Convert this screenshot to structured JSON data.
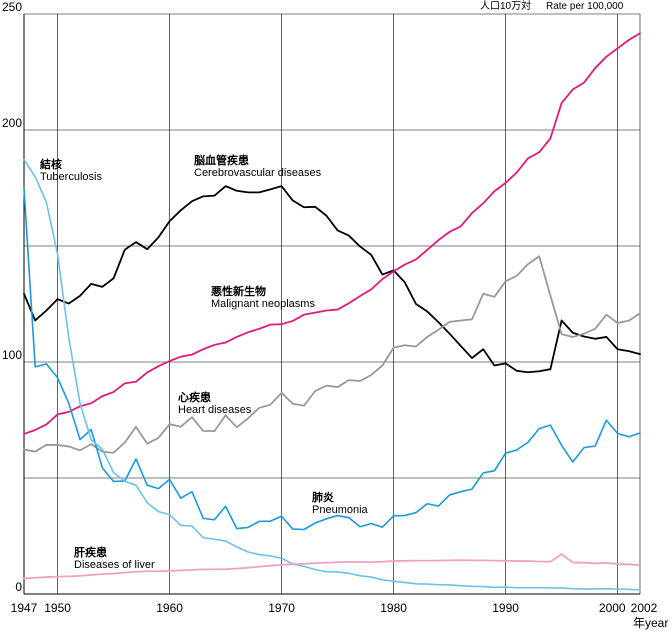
{
  "chart_data": {
    "type": "line",
    "unit_label_ja": "人口10万対",
    "unit_label_en": "Rate per 100,000",
    "x_axis_unit_ja": "年",
    "x_axis_unit_en": "year",
    "xlim": [
      1947,
      2002
    ],
    "ylim": [
      0,
      250
    ],
    "grid": true,
    "x_ticks": [
      1947,
      1950,
      1960,
      1970,
      1980,
      1990,
      2000,
      2002
    ],
    "y_ticks": [
      0,
      100,
      200,
      250
    ],
    "grid_x": [
      1950,
      1960,
      1970,
      1980,
      1990,
      2000,
      2002
    ],
    "grid_y": [
      50,
      100,
      150,
      200,
      250
    ],
    "x": [
      1947,
      1948,
      1949,
      1950,
      1951,
      1952,
      1953,
      1954,
      1955,
      1956,
      1957,
      1958,
      1959,
      1960,
      1961,
      1962,
      1963,
      1964,
      1965,
      1966,
      1967,
      1968,
      1969,
      1970,
      1971,
      1972,
      1973,
      1974,
      1975,
      1976,
      1977,
      1978,
      1979,
      1980,
      1981,
      1982,
      1983,
      1984,
      1985,
      1986,
      1987,
      1988,
      1989,
      1990,
      1991,
      1992,
      1993,
      1994,
      1995,
      1996,
      1997,
      1998,
      1999,
      2000,
      2001,
      2002
    ],
    "series": [
      {
        "name_ja": "脳血管疾患",
        "name_en": "Cerebrovascular diseases",
        "color": "#000000",
        "values": [
          129.4,
          117.9,
          122.2,
          127.1,
          125.2,
          128.5,
          133.7,
          132.4,
          136.1,
          148.4,
          151.7,
          148.6,
          153.7,
          160.7,
          165.4,
          169.3,
          171.4,
          171.7,
          175.8,
          173.8,
          173.1,
          173.1,
          174.4,
          175.8,
          169.6,
          166.7,
          166.9,
          163.1,
          156.7,
          154.5,
          149.8,
          146.2,
          137.7,
          139.5,
          134.3,
          125.0,
          121.8,
          117.2,
          112.2,
          106.9,
          101.7,
          105.5,
          98.5,
          99.4,
          96.2,
          95.6,
          96.0,
          96.9,
          117.9,
          112.6,
          111.0,
          110.0,
          110.8,
          105.5,
          104.7,
          103.4
        ]
      },
      {
        "name_ja": "悪性新生物",
        "name_en": "Malignant neoplasms",
        "color": "#e0197d",
        "values": [
          69.0,
          70.7,
          73.1,
          77.4,
          78.5,
          80.9,
          82.2,
          85.3,
          87.1,
          90.8,
          91.5,
          95.5,
          98.2,
          100.4,
          102.3,
          103.2,
          105.5,
          107.4,
          108.4,
          110.8,
          112.8,
          114.3,
          116.1,
          116.3,
          117.7,
          120.4,
          121.3,
          122.2,
          122.6,
          125.3,
          128.4,
          131.3,
          135.7,
          139.1,
          142.0,
          144.2,
          148.3,
          152.5,
          156.1,
          158.5,
          164.2,
          168.4,
          173.6,
          177.2,
          181.7,
          187.8,
          190.4,
          196.4,
          211.6,
          217.5,
          220.4,
          226.7,
          231.6,
          235.2,
          238.8,
          241.7
        ]
      },
      {
        "name_ja": "心疾患",
        "name_en": "Heart diseases",
        "color": "#999999",
        "values": [
          62.2,
          61.4,
          64.3,
          64.2,
          63.6,
          61.9,
          64.6,
          61.3,
          60.9,
          65.3,
          72.1,
          64.8,
          67.3,
          73.2,
          72.1,
          76.2,
          70.3,
          70.2,
          77.0,
          71.9,
          75.7,
          80.2,
          81.6,
          86.7,
          82.0,
          81.2,
          87.5,
          89.8,
          89.2,
          92.2,
          91.8,
          94.4,
          98.5,
          106.2,
          107.2,
          106.7,
          110.8,
          113.9,
          117.3,
          117.9,
          118.4,
          129.4,
          128.1,
          134.8,
          137.2,
          142.2,
          145.6,
          128.6,
          112.0,
          110.8,
          112.2,
          114.3,
          120.4,
          116.8,
          117.8,
          121.0
        ]
      },
      {
        "name_ja": "肺炎",
        "name_en": "Pneumonia",
        "color": "#1a9ad9",
        "values": [
          174.8,
          97.9,
          99.2,
          93.2,
          82.2,
          66.6,
          70.9,
          54.3,
          48.5,
          48.7,
          58.2,
          46.9,
          45.4,
          49.4,
          41.3,
          44.1,
          32.6,
          32.0,
          37.8,
          28.2,
          28.7,
          31.3,
          31.4,
          33.5,
          28.0,
          27.8,
          30.6,
          32.4,
          33.8,
          32.9,
          29.0,
          30.4,
          28.8,
          33.7,
          33.8,
          35.1,
          38.9,
          37.9,
          42.7,
          44.1,
          45.2,
          52.2,
          53.1,
          60.7,
          62.1,
          65.4,
          71.3,
          72.8,
          64.1,
          56.9,
          63.1,
          63.8,
          74.9,
          69.2,
          67.8,
          69.4
        ]
      },
      {
        "name_ja": "結核",
        "name_en": "Tuberculosis",
        "color": "#6cc1ea",
        "values": [
          187.2,
          179.9,
          168.8,
          146.4,
          110.3,
          82.2,
          66.5,
          62.4,
          52.3,
          48.6,
          46.9,
          39.4,
          35.5,
          34.2,
          29.6,
          29.3,
          24.3,
          23.6,
          22.8,
          20.3,
          18.1,
          17.0,
          16.4,
          15.4,
          12.9,
          11.9,
          10.5,
          9.6,
          9.5,
          8.9,
          7.9,
          7.3,
          6.1,
          5.5,
          5.0,
          4.4,
          4.3,
          4.0,
          3.9,
          3.6,
          3.3,
          3.2,
          2.9,
          3.0,
          2.7,
          2.7,
          2.7,
          2.6,
          2.6,
          2.3,
          2.2,
          2.2,
          2.3,
          2.1,
          2.0,
          1.8
        ]
      },
      {
        "name_ja": "肝疾患",
        "name_en": "Diseases of liver",
        "color": "#f0a0c8",
        "values": [
          6.7,
          7.0,
          7.3,
          7.5,
          7.6,
          7.8,
          8.2,
          8.6,
          8.8,
          9.2,
          9.6,
          9.8,
          9.8,
          10.0,
          10.2,
          10.4,
          10.6,
          10.6,
          10.7,
          11.0,
          11.3,
          11.8,
          12.2,
          12.6,
          12.8,
          13.0,
          13.3,
          13.5,
          13.7,
          13.8,
          13.8,
          13.7,
          13.9,
          14.2,
          14.3,
          14.4,
          14.4,
          14.4,
          14.5,
          14.6,
          14.5,
          14.5,
          14.4,
          14.3,
          14.2,
          14.2,
          14.0,
          13.9,
          17.2,
          13.6,
          13.5,
          13.2,
          13.4,
          12.9,
          12.8,
          12.4
        ]
      }
    ]
  }
}
